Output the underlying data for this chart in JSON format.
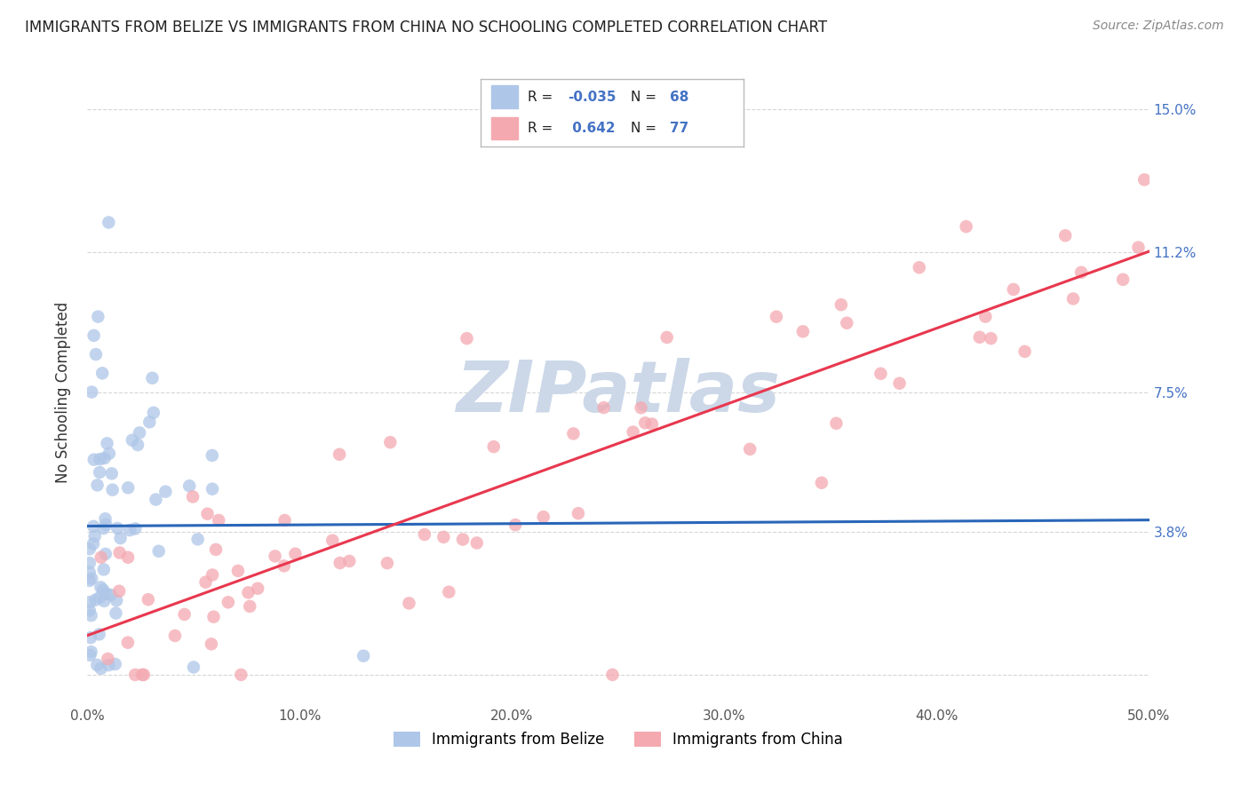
{
  "title": "IMMIGRANTS FROM BELIZE VS IMMIGRANTS FROM CHINA NO SCHOOLING COMPLETED CORRELATION CHART",
  "source": "Source: ZipAtlas.com",
  "ylabel": "No Schooling Completed",
  "xmin": 0.0,
  "xmax": 0.5,
  "ymin": -0.008,
  "ymax": 0.158,
  "yticks": [
    0.0,
    0.038,
    0.075,
    0.112,
    0.15
  ],
  "ytick_labels": [
    "",
    "3.8%",
    "7.5%",
    "11.2%",
    "15.0%"
  ],
  "xticks": [
    0.0,
    0.1,
    0.2,
    0.3,
    0.4,
    0.5
  ],
  "xtick_labels": [
    "0.0%",
    "10.0%",
    "20.0%",
    "30.0%",
    "40.0%",
    "50.0%"
  ],
  "belize_color": "#aec6e8",
  "china_color": "#f4a9b0",
  "belize_line_color": "#2966b8",
  "china_line_color": "#e8384f",
  "belize_dash_color": "#aec6e8",
  "china_dash_color": "#f4a9b0",
  "R_belize": -0.035,
  "N_belize": 68,
  "R_china": 0.642,
  "N_china": 77,
  "legend_label_belize": "Immigrants from Belize",
  "legend_label_china": "Immigrants from China",
  "background_color": "#ffffff",
  "grid_color": "#cccccc",
  "watermark": "ZIPatlas",
  "watermark_color": "#ccd8e8",
  "title_fontsize": 12,
  "source_fontsize": 10,
  "tick_fontsize": 11,
  "ylabel_fontsize": 12
}
